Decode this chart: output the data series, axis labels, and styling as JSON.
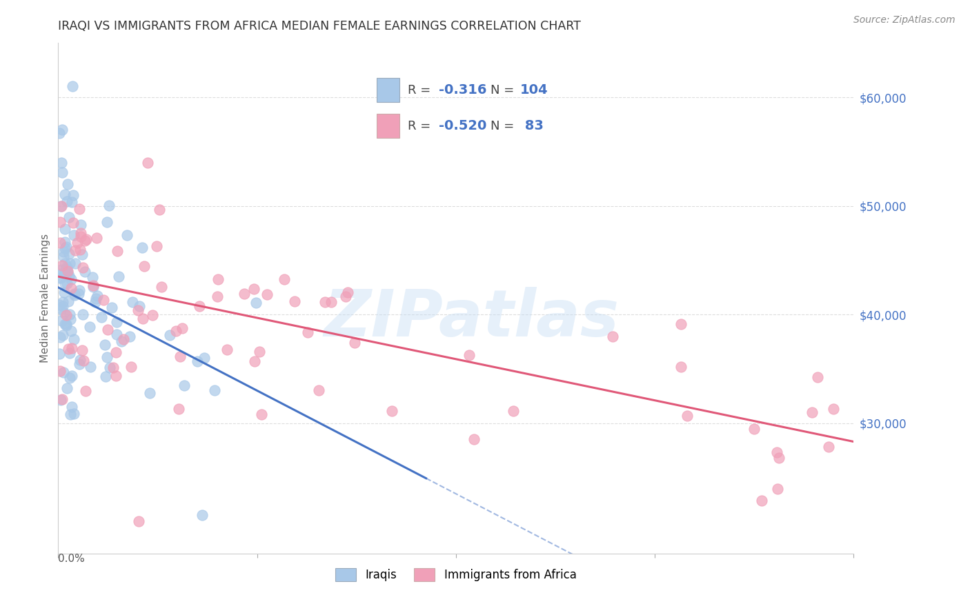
{
  "title": "IRAQI VS IMMIGRANTS FROM AFRICA MEDIAN FEMALE EARNINGS CORRELATION CHART",
  "source": "Source: ZipAtlas.com",
  "ylabel": "Median Female Earnings",
  "xlim": [
    0.0,
    0.4
  ],
  "ylim": [
    18000,
    65000
  ],
  "iraqi_color": "#A8C8E8",
  "africa_color": "#F0A0B8",
  "iraqi_line_color": "#4472C4",
  "africa_line_color": "#E05878",
  "dashed_color": "#AAAACC",
  "R_iraqi": -0.316,
  "N_iraqi": 104,
  "R_africa": -0.52,
  "N_africa": 83,
  "iraqi_intercept": 42500,
  "iraqi_slope": -95000,
  "iraqi_line_end": 0.185,
  "africa_intercept": 43500,
  "africa_slope": -38000,
  "watermark": "ZIPatlas",
  "yticks": [
    30000,
    40000,
    50000,
    60000
  ],
  "ytick_labels": [
    "$30,000",
    "$40,000",
    "$50,000",
    "$60,000"
  ]
}
